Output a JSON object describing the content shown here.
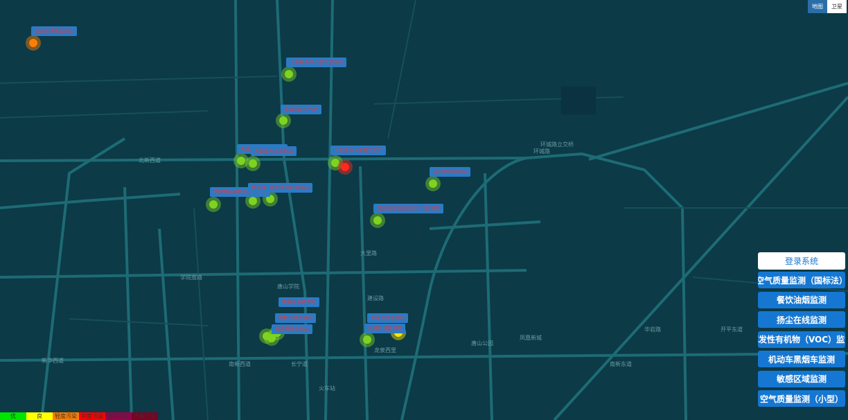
{
  "map_type_toggle": {
    "map": "地图",
    "satellite": "卫星"
  },
  "menu": {
    "login": "登录系统",
    "items": [
      "空气质量监测（国标法）",
      "餐饮油烟监测",
      "扬尘在线监测",
      "挥发性有机物（VOC）监测",
      "机动车黑烟车监测",
      "敏感区域监测",
      "空气质量监测（小型）"
    ]
  },
  "legend": [
    {
      "label": "优",
      "color": "#00e400"
    },
    {
      "label": "良",
      "color": "#ffff00"
    },
    {
      "label": "轻度污染",
      "color": "#ff7e00"
    },
    {
      "label": "中度污染",
      "color": "#ff0000"
    },
    {
      "label": "重度污染",
      "color": "#99004c"
    },
    {
      "label": "严重污染",
      "color": "#7e0023"
    }
  ],
  "stations": [
    {
      "name": "路北区环境监测站",
      "color": "#ff7e00"
    },
    {
      "name": "北方商务中心空气监测站",
      "color": "#7ed321"
    },
    {
      "name": "市监测站空气站",
      "color": "#7ed321"
    },
    {
      "name": "大北道东北角微型站",
      "color": "#7ed321"
    },
    {
      "name": "大北道东北监测站",
      "color": "#7ed321"
    },
    {
      "name": "大北道与大里路交叉口",
      "color": "#7ed321"
    },
    {
      "name": "南湖东侧监测站",
      "color": "#ff2a1a"
    },
    {
      "name": "唐山学院监测站",
      "color": "#7ed321"
    },
    {
      "name": "学院南路与新华道监测站",
      "color": "#7ed321"
    },
    {
      "name": "新华道中段监测站",
      "color": "#7ed321"
    },
    {
      "name": "新华道西段监测站",
      "color": "#7ed321"
    },
    {
      "name": "建设路与南新道交叉口监测站",
      "color": "#7ed321"
    },
    {
      "name": "南新道与城市站",
      "color": "#7ed321"
    },
    {
      "name": "南新西道监测站",
      "color": "#7ed321"
    },
    {
      "name": "龙泉西里监测站",
      "color": "#7ed321"
    },
    {
      "name": "龙泉东里监测站",
      "color": "#ffe600"
    },
    {
      "name": "凤凰新城监测站",
      "color": "#7ed321"
    }
  ],
  "places": [
    "环城路",
    "环城路立交桥",
    "唐山学院",
    "凤凰新城",
    "新华西道",
    "北新西道",
    "南新西道",
    "龙泉西里",
    "大里路",
    "唐山公园",
    "建设路",
    "学院南路",
    "长宁道",
    "开平东道",
    "南新东道",
    "华岩路",
    "火车站"
  ]
}
